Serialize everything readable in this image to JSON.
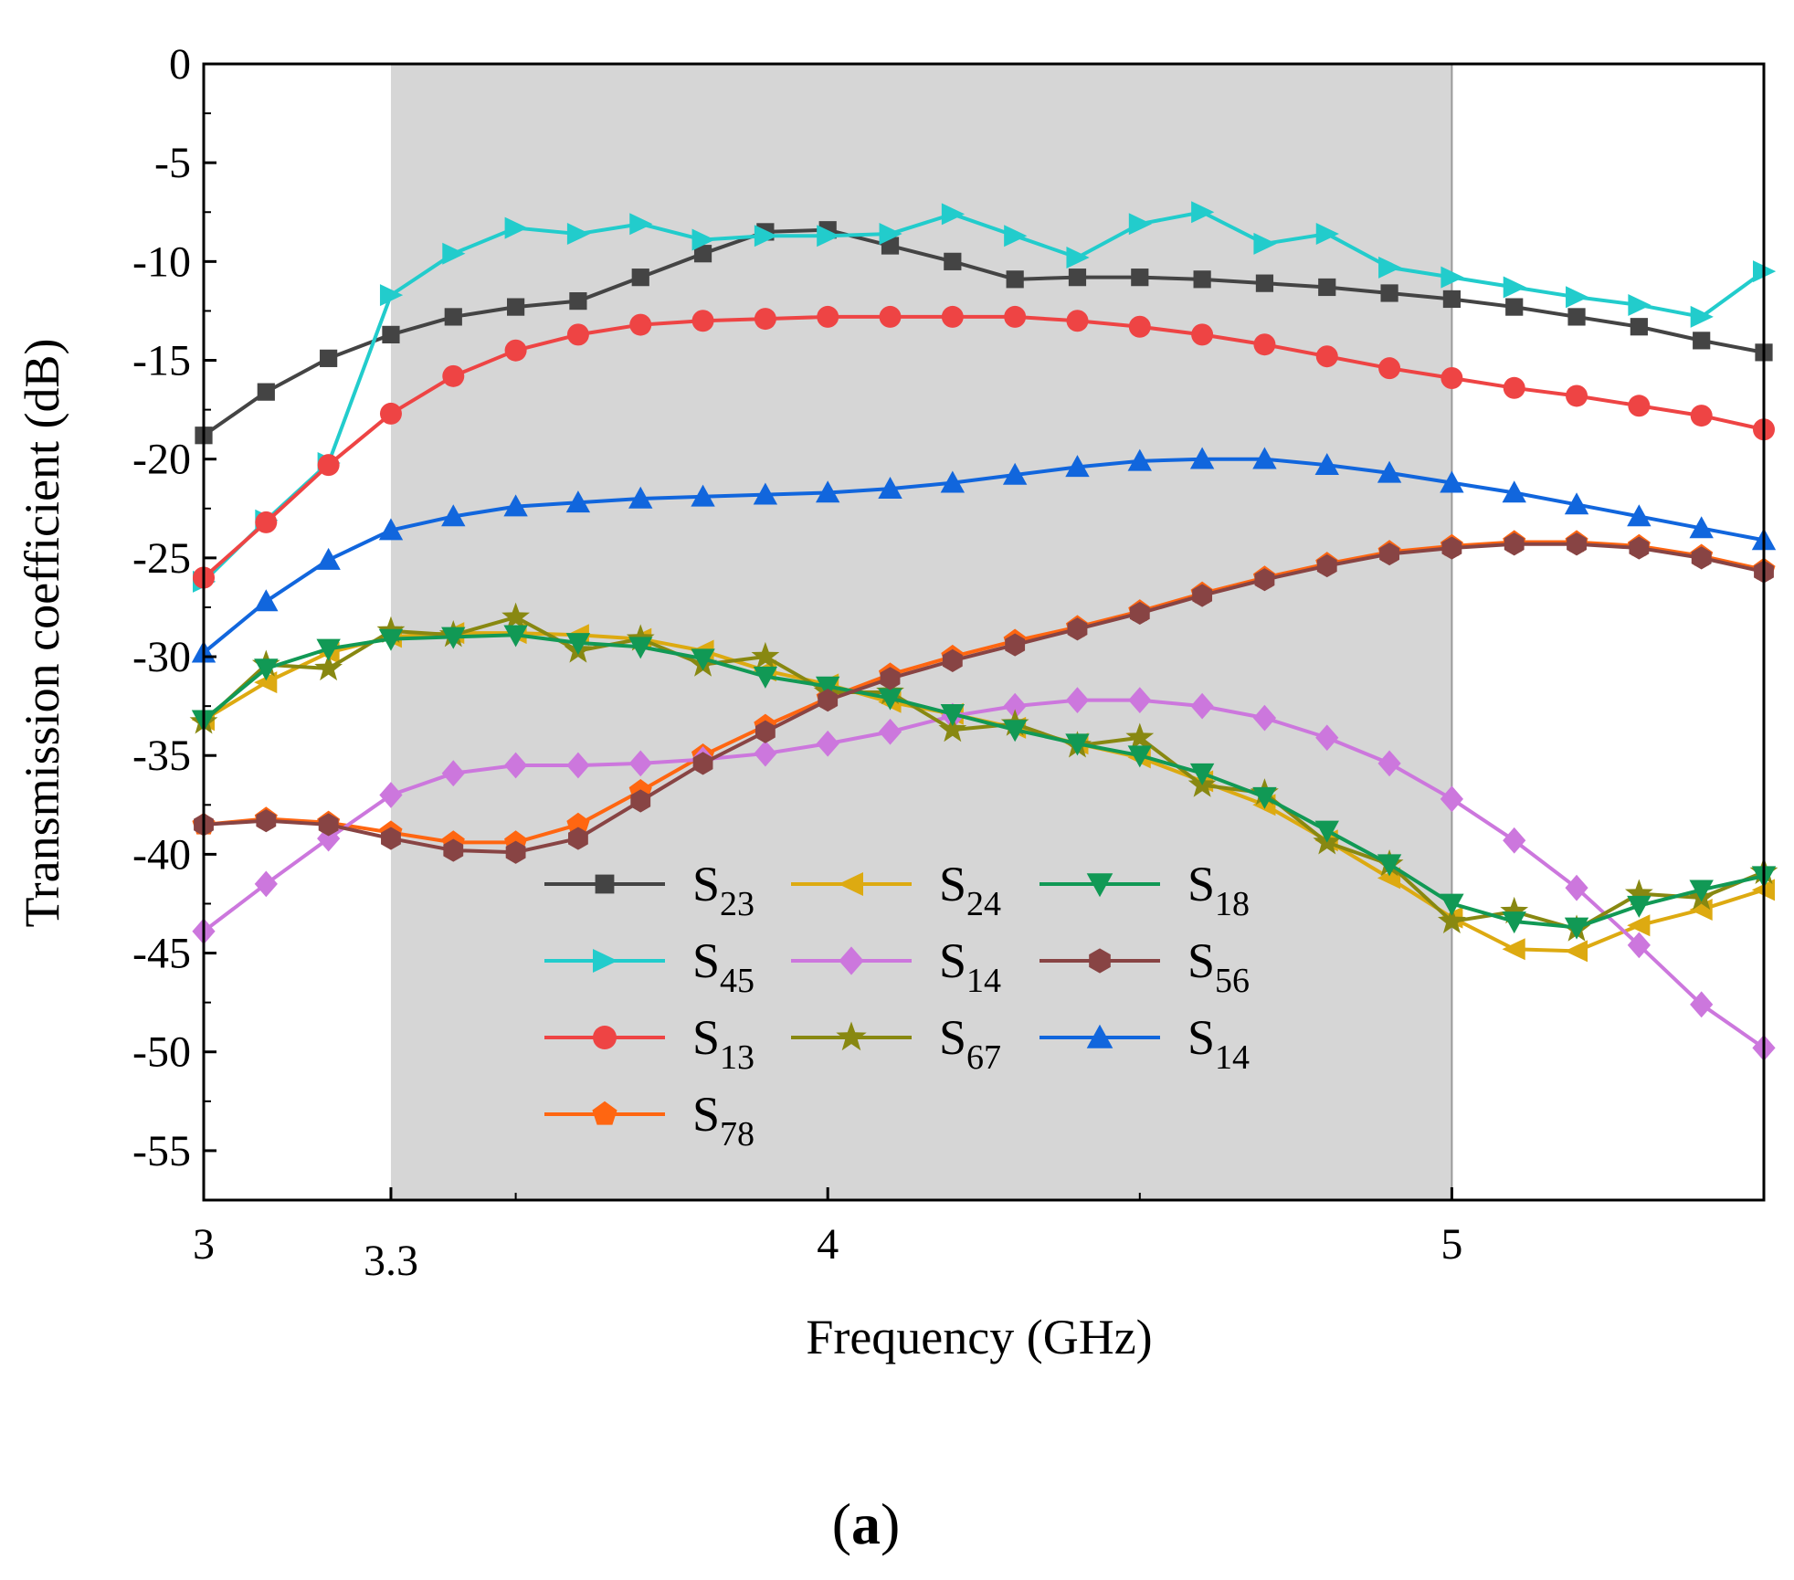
{
  "panel_label": {
    "open": "(",
    "letter": "a",
    "close": ")"
  },
  "chart_data": {
    "type": "line",
    "title": "",
    "xlabel": "Frequency (GHz)",
    "ylabel": "Transmission coefficient (dB)",
    "xlim": [
      3,
      5.5
    ],
    "ylim": [
      -57.5,
      0
    ],
    "x_ticks": [
      {
        "value": 3,
        "label": "3"
      },
      {
        "value": 3.3,
        "label": "3.3"
      },
      {
        "value": 4,
        "label": "4"
      },
      {
        "value": 5,
        "label": "5"
      }
    ],
    "x_minor_ticks": [
      3.5,
      4.5
    ],
    "y_ticks": [
      {
        "value": 0,
        "label": "0"
      },
      {
        "value": -5,
        "label": "-5"
      },
      {
        "value": -10,
        "label": "-10"
      },
      {
        "value": -15,
        "label": "-15"
      },
      {
        "value": -20,
        "label": "-20"
      },
      {
        "value": -25,
        "label": "-25"
      },
      {
        "value": -30,
        "label": "-30"
      },
      {
        "value": -35,
        "label": "-35"
      },
      {
        "value": -40,
        "label": "-40"
      },
      {
        "value": -45,
        "label": "-45"
      },
      {
        "value": -50,
        "label": "-50"
      },
      {
        "value": -55,
        "label": "-55"
      }
    ],
    "shaded_band": {
      "from": 3.3,
      "to": 5.0,
      "color": "#d6d6d6"
    },
    "legend_position": "lower-center",
    "x": [
      3.0,
      3.1,
      3.2,
      3.3,
      3.4,
      3.5,
      3.6,
      3.7,
      3.8,
      3.9,
      4.0,
      4.1,
      4.2,
      4.3,
      4.4,
      4.5,
      4.6,
      4.7,
      4.8,
      4.9,
      5.0,
      5.1,
      5.2,
      5.3,
      5.4,
      5.5
    ],
    "series": [
      {
        "name": "S",
        "sub": "23",
        "color": "#444444",
        "marker": "square",
        "values": [
          -18.8,
          -16.6,
          -14.9,
          -13.7,
          -12.8,
          -12.3,
          -12.0,
          -10.8,
          -9.6,
          -8.5,
          -8.4,
          -9.2,
          -10.0,
          -10.9,
          -10.8,
          -10.8,
          -10.9,
          -11.1,
          -11.3,
          -11.6,
          -11.9,
          -12.3,
          -12.8,
          -13.3,
          -14.0,
          -14.6
        ]
      },
      {
        "name": "S",
        "sub": "45",
        "color": "#22cccc",
        "marker": "triangle-right",
        "values": [
          -26.2,
          -23.1,
          -20.2,
          -11.7,
          -9.6,
          -8.3,
          -8.6,
          -8.1,
          -8.9,
          -8.7,
          -8.7,
          -8.6,
          -7.6,
          -8.7,
          -9.8,
          -8.1,
          -7.5,
          -9.1,
          -8.6,
          -10.3,
          -10.8,
          -11.3,
          -11.8,
          -12.2,
          -12.8,
          -10.5
        ]
      },
      {
        "name": "S",
        "sub": "13",
        "color": "#ee4444",
        "marker": "circle",
        "values": [
          -26.0,
          -23.2,
          -20.3,
          -17.7,
          -15.8,
          -14.5,
          -13.7,
          -13.2,
          -13.0,
          -12.9,
          -12.8,
          -12.8,
          -12.8,
          -12.8,
          -13.0,
          -13.3,
          -13.7,
          -14.2,
          -14.8,
          -15.4,
          -15.9,
          -16.4,
          -16.8,
          -17.3,
          -17.8,
          -18.5
        ]
      },
      {
        "name": "S",
        "sub": "78",
        "color": "#ff6611",
        "marker": "pentagon",
        "values": [
          -38.5,
          -38.2,
          -38.4,
          -38.9,
          -39.4,
          -39.4,
          -38.5,
          -36.8,
          -35.0,
          -33.5,
          -32.1,
          -30.9,
          -30.0,
          -29.2,
          -28.5,
          -27.7,
          -26.8,
          -26.0,
          -25.3,
          -24.7,
          -24.4,
          -24.2,
          -24.2,
          -24.4,
          -24.9,
          -25.6
        ]
      },
      {
        "name": "S",
        "sub": "24",
        "color": "#ddaa11",
        "marker": "triangle-left",
        "values": [
          -33.2,
          -31.3,
          -29.8,
          -29.0,
          -28.8,
          -28.8,
          -28.9,
          -29.1,
          -29.7,
          -30.7,
          -31.4,
          -32.3,
          -32.9,
          -33.6,
          -34.4,
          -35.1,
          -36.3,
          -37.5,
          -39.3,
          -41.2,
          -43.2,
          -44.8,
          -44.9,
          -43.6,
          -42.8,
          -41.8
        ]
      },
      {
        "name": "S",
        "sub": "14",
        "color": "#cc77dd",
        "marker": "diamond",
        "values": [
          -43.9,
          -41.5,
          -39.2,
          -37.0,
          -35.9,
          -35.5,
          -35.5,
          -35.4,
          -35.2,
          -34.9,
          -34.4,
          -33.8,
          -33.0,
          -32.5,
          -32.2,
          -32.2,
          -32.5,
          -33.1,
          -34.1,
          -35.4,
          -37.2,
          -39.3,
          -41.7,
          -44.6,
          -47.6,
          -49.8
        ]
      },
      {
        "name": "S",
        "sub": "67",
        "color": "#888811",
        "marker": "star",
        "values": [
          -33.3,
          -30.4,
          -30.6,
          -28.7,
          -28.9,
          -28.0,
          -29.7,
          -29.1,
          -30.4,
          -30.0,
          -31.8,
          -31.8,
          -33.7,
          -33.4,
          -34.5,
          -34.1,
          -36.5,
          -36.9,
          -39.4,
          -40.5,
          -43.4,
          -42.9,
          -43.8,
          -42.0,
          -42.2,
          -40.9
        ]
      },
      {
        "name": "S",
        "sub": "18",
        "color": "#119955",
        "marker": "triangle-down",
        "values": [
          -33.2,
          -30.6,
          -29.6,
          -29.1,
          -29.0,
          -28.9,
          -29.3,
          -29.5,
          -30.1,
          -31.0,
          -31.5,
          -32.1,
          -32.9,
          -33.7,
          -34.4,
          -35.0,
          -35.9,
          -37.1,
          -38.8,
          -40.5,
          -42.5,
          -43.4,
          -43.7,
          -42.6,
          -41.8,
          -41.1
        ]
      },
      {
        "name": "S",
        "sub": "56",
        "color": "#884444",
        "marker": "hexagon",
        "values": [
          -38.5,
          -38.3,
          -38.5,
          -39.2,
          -39.8,
          -39.9,
          -39.2,
          -37.3,
          -35.4,
          -33.8,
          -32.2,
          -31.1,
          -30.2,
          -29.4,
          -28.6,
          -27.8,
          -26.9,
          -26.1,
          -25.4,
          -24.8,
          -24.5,
          -24.3,
          -24.3,
          -24.5,
          -25.0,
          -25.7
        ]
      },
      {
        "name": "S",
        "sub": "14",
        "color": "#1166dd",
        "marker": "triangle-up",
        "values": [
          -29.8,
          -27.2,
          -25.1,
          -23.6,
          -22.9,
          -22.4,
          -22.2,
          -22.0,
          -21.9,
          -21.8,
          -21.7,
          -21.5,
          -21.2,
          -20.8,
          -20.4,
          -20.1,
          -20.0,
          -20.0,
          -20.3,
          -20.7,
          -21.2,
          -21.7,
          -22.3,
          -22.9,
          -23.5,
          -24.1
        ]
      }
    ],
    "legend_columns": [
      [
        0,
        1,
        2,
        3
      ],
      [
        4,
        5,
        6
      ],
      [
        7,
        8,
        9
      ]
    ]
  }
}
